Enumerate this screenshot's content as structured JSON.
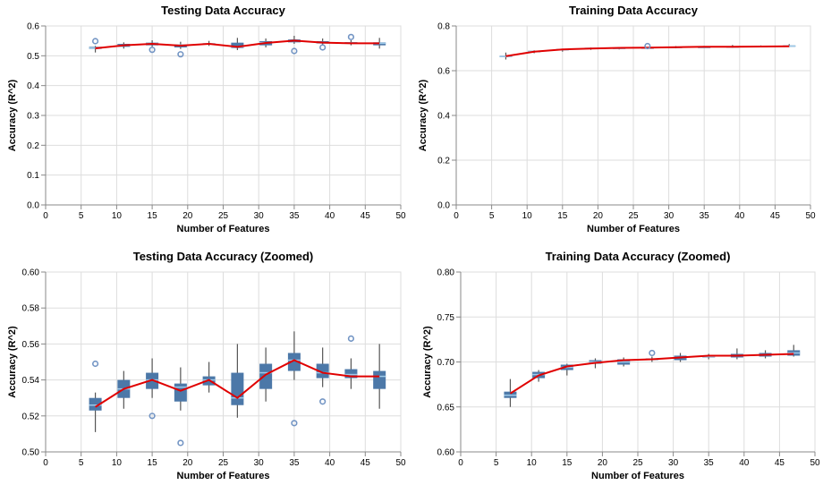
{
  "chart_data": [
    {
      "type": "boxplot",
      "title": "Testing Data Accuracy",
      "xlabel": "Number of Features",
      "ylabel": "Accuracy (R^2)",
      "xlim": [
        0,
        50
      ],
      "ylim": [
        0,
        0.6
      ],
      "xticks": [
        0,
        5,
        10,
        15,
        20,
        25,
        30,
        35,
        40,
        45,
        50
      ],
      "xtick_labels": [
        "0",
        "5",
        "10",
        "15",
        "20",
        "25",
        "30",
        "35",
        "40",
        "45",
        "50"
      ],
      "yticks": [
        0.0,
        0.1,
        0.2,
        0.3,
        0.4,
        0.5,
        0.6
      ],
      "ytick_labels": [
        "0.0",
        "0.1",
        "0.2",
        "0.3",
        "0.4",
        "0.5",
        "0.6"
      ],
      "grid": true,
      "boxes": [
        {
          "x": 7,
          "min": 0.511,
          "q1": 0.523,
          "median": 0.526,
          "q3": 0.53,
          "max": 0.533
        },
        {
          "x": 11,
          "min": 0.524,
          "q1": 0.53,
          "median": 0.535,
          "q3": 0.54,
          "max": 0.545
        },
        {
          "x": 15,
          "min": 0.53,
          "q1": 0.535,
          "median": 0.54,
          "q3": 0.544,
          "max": 0.552
        },
        {
          "x": 19,
          "min": 0.523,
          "q1": 0.528,
          "median": 0.536,
          "q3": 0.538,
          "max": 0.547
        },
        {
          "x": 23,
          "min": 0.533,
          "q1": 0.537,
          "median": 0.54,
          "q3": 0.542,
          "max": 0.55
        },
        {
          "x": 27,
          "min": 0.519,
          "q1": 0.526,
          "median": 0.53,
          "q3": 0.544,
          "max": 0.56
        },
        {
          "x": 31,
          "min": 0.528,
          "q1": 0.535,
          "median": 0.544,
          "q3": 0.549,
          "max": 0.558
        },
        {
          "x": 35,
          "min": 0.54,
          "q1": 0.545,
          "median": 0.551,
          "q3": 0.555,
          "max": 0.567
        },
        {
          "x": 39,
          "min": 0.536,
          "q1": 0.541,
          "median": 0.544,
          "q3": 0.549,
          "max": 0.558
        },
        {
          "x": 43,
          "min": 0.535,
          "q1": 0.541,
          "median": 0.543,
          "q3": 0.546,
          "max": 0.552
        },
        {
          "x": 47,
          "min": 0.524,
          "q1": 0.535,
          "median": 0.542,
          "q3": 0.545,
          "max": 0.56
        }
      ],
      "outliers": [
        {
          "x": 7,
          "y": 0.549
        },
        {
          "x": 15,
          "y": 0.52
        },
        {
          "x": 19,
          "y": 0.505
        },
        {
          "x": 35,
          "y": 0.516
        },
        {
          "x": 39,
          "y": 0.528
        },
        {
          "x": 43,
          "y": 0.563
        }
      ],
      "mean_line": {
        "x": [
          7,
          11,
          15,
          19,
          23,
          27,
          31,
          35,
          39,
          43,
          47
        ],
        "y": [
          0.525,
          0.535,
          0.54,
          0.534,
          0.54,
          0.53,
          0.543,
          0.551,
          0.544,
          0.542,
          0.542
        ]
      }
    },
    {
      "type": "boxplot",
      "title": "Training Data Accuracy",
      "xlabel": "Number of Features",
      "ylabel": "Accuracy (R^2)",
      "xlim": [
        0,
        50
      ],
      "ylim": [
        0,
        0.8
      ],
      "xticks": [
        0,
        5,
        10,
        15,
        20,
        25,
        30,
        35,
        40,
        45,
        50
      ],
      "xtick_labels": [
        "0",
        "5",
        "10",
        "15",
        "20",
        "25",
        "30",
        "35",
        "40",
        "45",
        "50"
      ],
      "yticks": [
        0.0,
        0.2,
        0.4,
        0.6,
        0.8
      ],
      "ytick_labels": [
        "0.0",
        "0.2",
        "0.4",
        "0.6",
        "0.8"
      ],
      "grid": true,
      "boxes": [
        {
          "x": 7,
          "min": 0.65,
          "q1": 0.66,
          "median": 0.663,
          "q3": 0.667,
          "max": 0.681
        },
        {
          "x": 11,
          "min": 0.678,
          "q1": 0.682,
          "median": 0.686,
          "q3": 0.689,
          "max": 0.691
        },
        {
          "x": 15,
          "min": 0.685,
          "q1": 0.691,
          "median": 0.694,
          "q3": 0.697,
          "max": 0.698
        },
        {
          "x": 19,
          "min": 0.693,
          "q1": 0.698,
          "median": 0.7,
          "q3": 0.702,
          "max": 0.704
        },
        {
          "x": 23,
          "min": 0.695,
          "q1": 0.697,
          "median": 0.7,
          "q3": 0.703,
          "max": 0.705
        },
        {
          "x": 27,
          "min": 0.7,
          "q1": 0.702,
          "median": 0.703,
          "q3": 0.704,
          "max": 0.706
        },
        {
          "x": 31,
          "min": 0.7,
          "q1": 0.702,
          "median": 0.705,
          "q3": 0.707,
          "max": 0.71
        },
        {
          "x": 35,
          "min": 0.703,
          "q1": 0.705,
          "median": 0.706,
          "q3": 0.707,
          "max": 0.709
        },
        {
          "x": 39,
          "min": 0.703,
          "q1": 0.705,
          "median": 0.707,
          "q3": 0.709,
          "max": 0.715
        },
        {
          "x": 43,
          "min": 0.704,
          "q1": 0.706,
          "median": 0.708,
          "q3": 0.71,
          "max": 0.713
        },
        {
          "x": 47,
          "min": 0.706,
          "q1": 0.707,
          "median": 0.71,
          "q3": 0.713,
          "max": 0.719
        }
      ],
      "outliers": [
        {
          "x": 27,
          "y": 0.71
        }
      ],
      "mean_line": {
        "x": [
          7,
          11,
          15,
          19,
          23,
          27,
          31,
          35,
          39,
          43,
          47
        ],
        "y": [
          0.665,
          0.685,
          0.695,
          0.699,
          0.702,
          0.703,
          0.705,
          0.707,
          0.707,
          0.708,
          0.709
        ]
      }
    },
    {
      "type": "boxplot",
      "title": "Testing Data Accuracy (Zoomed)",
      "xlabel": "Number of Features",
      "ylabel": "Accuracy (R^2)",
      "xlim": [
        0,
        50
      ],
      "ylim": [
        0.5,
        0.6
      ],
      "xticks": [
        0,
        5,
        10,
        15,
        20,
        25,
        30,
        35,
        40,
        45,
        50
      ],
      "xtick_labels": [
        "0",
        "5",
        "10",
        "15",
        "20",
        "25",
        "30",
        "35",
        "40",
        "45",
        "50"
      ],
      "yticks": [
        0.5,
        0.52,
        0.54,
        0.56,
        0.58,
        0.6
      ],
      "ytick_labels": [
        "0.50",
        "0.52",
        "0.54",
        "0.56",
        "0.58",
        "0.60"
      ],
      "grid": true,
      "boxes": [
        {
          "x": 7,
          "min": 0.511,
          "q1": 0.523,
          "median": 0.526,
          "q3": 0.53,
          "max": 0.533
        },
        {
          "x": 11,
          "min": 0.524,
          "q1": 0.53,
          "median": 0.535,
          "q3": 0.54,
          "max": 0.545
        },
        {
          "x": 15,
          "min": 0.53,
          "q1": 0.535,
          "median": 0.54,
          "q3": 0.544,
          "max": 0.552
        },
        {
          "x": 19,
          "min": 0.523,
          "q1": 0.528,
          "median": 0.536,
          "q3": 0.538,
          "max": 0.547
        },
        {
          "x": 23,
          "min": 0.533,
          "q1": 0.537,
          "median": 0.54,
          "q3": 0.542,
          "max": 0.55
        },
        {
          "x": 27,
          "min": 0.519,
          "q1": 0.526,
          "median": 0.53,
          "q3": 0.544,
          "max": 0.56
        },
        {
          "x": 31,
          "min": 0.528,
          "q1": 0.535,
          "median": 0.544,
          "q3": 0.549,
          "max": 0.558
        },
        {
          "x": 35,
          "min": 0.54,
          "q1": 0.545,
          "median": 0.551,
          "q3": 0.555,
          "max": 0.567
        },
        {
          "x": 39,
          "min": 0.536,
          "q1": 0.541,
          "median": 0.544,
          "q3": 0.549,
          "max": 0.558
        },
        {
          "x": 43,
          "min": 0.535,
          "q1": 0.541,
          "median": 0.543,
          "q3": 0.546,
          "max": 0.552
        },
        {
          "x": 47,
          "min": 0.524,
          "q1": 0.535,
          "median": 0.542,
          "q3": 0.545,
          "max": 0.56
        }
      ],
      "outliers": [
        {
          "x": 7,
          "y": 0.549
        },
        {
          "x": 15,
          "y": 0.52
        },
        {
          "x": 19,
          "y": 0.505
        },
        {
          "x": 35,
          "y": 0.516
        },
        {
          "x": 39,
          "y": 0.528
        },
        {
          "x": 43,
          "y": 0.563
        }
      ],
      "mean_line": {
        "x": [
          7,
          11,
          15,
          19,
          23,
          27,
          31,
          35,
          39,
          43,
          47
        ],
        "y": [
          0.525,
          0.535,
          0.54,
          0.534,
          0.54,
          0.53,
          0.543,
          0.551,
          0.544,
          0.542,
          0.542
        ]
      }
    },
    {
      "type": "boxplot",
      "title": "Training Data Accuracy (Zoomed)",
      "xlabel": "Number of Features",
      "ylabel": "Accuracy (R^2)",
      "xlim": [
        0,
        50
      ],
      "ylim": [
        0.6,
        0.8
      ],
      "xticks": [
        0,
        5,
        10,
        15,
        20,
        25,
        30,
        35,
        40,
        45,
        50
      ],
      "xtick_labels": [
        "0",
        "5",
        "10",
        "15",
        "20",
        "25",
        "30",
        "35",
        "40",
        "45",
        "50"
      ],
      "yticks": [
        0.6,
        0.65,
        0.7,
        0.75,
        0.8
      ],
      "ytick_labels": [
        "0.60",
        "0.65",
        "0.70",
        "0.75",
        "0.80"
      ],
      "grid": true,
      "boxes": [
        {
          "x": 7,
          "min": 0.65,
          "q1": 0.66,
          "median": 0.663,
          "q3": 0.667,
          "max": 0.681
        },
        {
          "x": 11,
          "min": 0.678,
          "q1": 0.682,
          "median": 0.686,
          "q3": 0.689,
          "max": 0.691
        },
        {
          "x": 15,
          "min": 0.685,
          "q1": 0.691,
          "median": 0.694,
          "q3": 0.697,
          "max": 0.698
        },
        {
          "x": 19,
          "min": 0.693,
          "q1": 0.698,
          "median": 0.7,
          "q3": 0.702,
          "max": 0.704
        },
        {
          "x": 23,
          "min": 0.695,
          "q1": 0.697,
          "median": 0.7,
          "q3": 0.703,
          "max": 0.705
        },
        {
          "x": 27,
          "min": 0.7,
          "q1": 0.702,
          "median": 0.703,
          "q3": 0.704,
          "max": 0.706
        },
        {
          "x": 31,
          "min": 0.7,
          "q1": 0.702,
          "median": 0.705,
          "q3": 0.707,
          "max": 0.71
        },
        {
          "x": 35,
          "min": 0.703,
          "q1": 0.705,
          "median": 0.706,
          "q3": 0.707,
          "max": 0.709
        },
        {
          "x": 39,
          "min": 0.703,
          "q1": 0.705,
          "median": 0.707,
          "q3": 0.709,
          "max": 0.715
        },
        {
          "x": 43,
          "min": 0.704,
          "q1": 0.706,
          "median": 0.708,
          "q3": 0.71,
          "max": 0.713
        },
        {
          "x": 47,
          "min": 0.706,
          "q1": 0.707,
          "median": 0.71,
          "q3": 0.713,
          "max": 0.719
        }
      ],
      "outliers": [
        {
          "x": 27,
          "y": 0.71
        }
      ],
      "mean_line": {
        "x": [
          7,
          11,
          15,
          19,
          23,
          27,
          31,
          35,
          39,
          43,
          47
        ],
        "y": [
          0.665,
          0.685,
          0.695,
          0.699,
          0.702,
          0.703,
          0.705,
          0.707,
          0.707,
          0.708,
          0.709
        ]
      }
    }
  ],
  "colors": {
    "box_fill": "#4c78a8",
    "median": "#9ecae9",
    "whisker": "#555555",
    "outlier_stroke": "#7395c4",
    "mean_line": "#e00000",
    "grid": "#dddddd",
    "axis": "#888888"
  }
}
